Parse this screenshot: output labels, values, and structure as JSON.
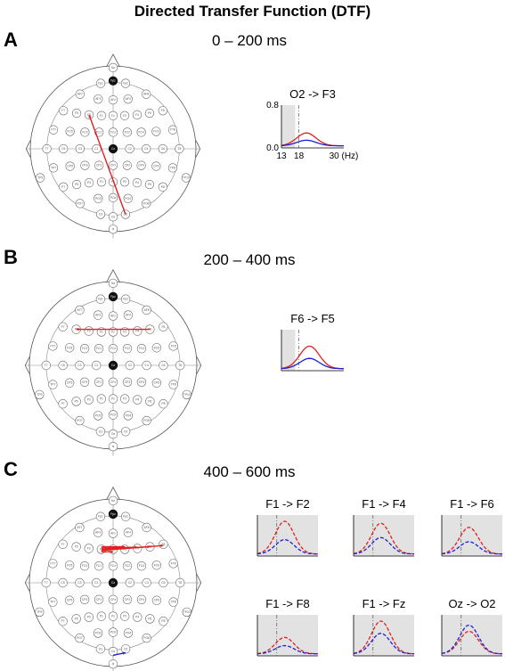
{
  "title": "Directed Transfer Function (DTF)",
  "panels": [
    {
      "id": "A",
      "label": "A",
      "time": "0 – 200 ms",
      "connections": [
        {
          "from": "O2",
          "to": "F3",
          "color": "#e02020"
        }
      ],
      "minicharts": [
        {
          "title": "O2 -> F3",
          "red_peak": 0.35,
          "blue_peak": 0.18
        }
      ],
      "axis": {
        "ymax_label": "0.8",
        "ymin_label": "0.0",
        "x_ticks": [
          "13",
          "18",
          "30 (Hz)"
        ]
      }
    },
    {
      "id": "B",
      "label": "B",
      "time": "200 – 400 ms",
      "connections": [
        {
          "from": "F6",
          "to": "F5",
          "color": "#e02020"
        }
      ],
      "minicharts": [
        {
          "title": "F6 -> F5",
          "red_peak": 0.6,
          "blue_peak": 0.3
        }
      ]
    },
    {
      "id": "C",
      "label": "C",
      "time": "400 – 600 ms",
      "connections": [
        {
          "from": "F1",
          "to": "F2",
          "color": "#e02020"
        },
        {
          "from": "F1",
          "to": "F4",
          "color": "#e02020"
        },
        {
          "from": "F1",
          "to": "F6",
          "color": "#e02020"
        },
        {
          "from": "F1",
          "to": "F8",
          "color": "#e02020"
        },
        {
          "from": "F1",
          "to": "Fz",
          "color": "#e02020"
        },
        {
          "from": "Oz",
          "to": "O2",
          "color": "#2020d0"
        }
      ],
      "minicharts": [
        {
          "title": "F1 -> F2",
          "red_peak": 0.85,
          "blue_peak": 0.4
        },
        {
          "title": "F1 -> F4",
          "red_peak": 0.8,
          "blue_peak": 0.45
        },
        {
          "title": "F1 -> F6",
          "red_peak": 0.7,
          "blue_peak": 0.35
        },
        {
          "title": "F1 -> F8",
          "red_peak": 0.45,
          "blue_peak": 0.25
        },
        {
          "title": "F1 -> Fz",
          "red_peak": 0.85,
          "blue_peak": 0.55
        },
        {
          "title": "Oz -> O2",
          "red_peak": 0.6,
          "blue_peak": 0.75
        }
      ]
    }
  ],
  "colors": {
    "red": "#e02020",
    "blue": "#2020d0",
    "grey_band": "#e2e2e2"
  }
}
